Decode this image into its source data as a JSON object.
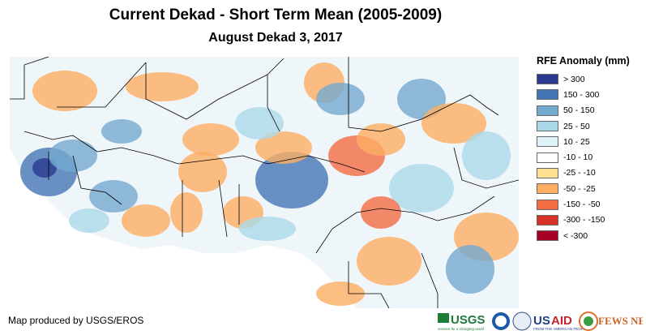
{
  "title": "Current Dekad - Short Term Mean (2005-2009)",
  "subtitle": "August Dekad 3, 2017",
  "legend": {
    "title": "RFE Anomaly (mm)",
    "items": [
      {
        "label": "> 300",
        "color": "#2b3990"
      },
      {
        "label": "150 - 300",
        "color": "#4575b4"
      },
      {
        "label": "50 - 150",
        "color": "#74a9d0"
      },
      {
        "label": "25 - 50",
        "color": "#abd9e9"
      },
      {
        "label": "10 - 25",
        "color": "#e0f3f8"
      },
      {
        "label": "-10 - 10",
        "color": "#ffffff"
      },
      {
        "label": "-25 - -10",
        "color": "#fee090"
      },
      {
        "label": "-50 - -25",
        "color": "#fdae61"
      },
      {
        "label": "-150 - -50",
        "color": "#f46d43"
      },
      {
        "label": "-300 - -150",
        "color": "#d73027"
      },
      {
        "label": "< -300",
        "color": "#a50026"
      }
    ]
  },
  "credit": "Map produced by USGS/EROS",
  "logos": [
    "USGS",
    "science for a changing world",
    "NOAA",
    "USAID",
    "FROM THE AMERICAN PEOPLE",
    "FEWS NET"
  ]
}
